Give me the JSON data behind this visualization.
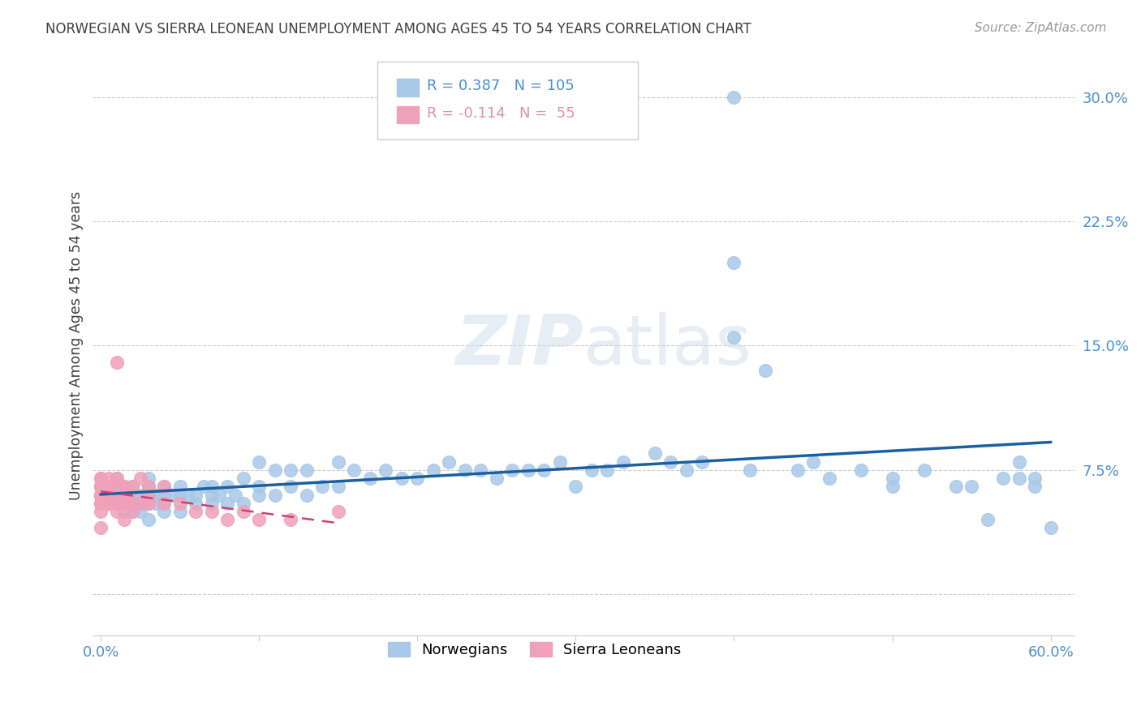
{
  "title": "NORWEGIAN VS SIERRA LEONEAN UNEMPLOYMENT AMONG AGES 45 TO 54 YEARS CORRELATION CHART",
  "source": "Source: ZipAtlas.com",
  "ylabel": "Unemployment Among Ages 45 to 54 years",
  "watermark": "ZIPatlas",
  "legend_norwegian": "Norwegians",
  "legend_sierra": "Sierra Leoneans",
  "r_norwegian": 0.387,
  "n_norwegian": 105,
  "r_sierra": -0.114,
  "n_sierra": 55,
  "xlim": [
    -0.005,
    0.615
  ],
  "ylim": [
    -0.025,
    0.325
  ],
  "yticks": [
    0.0,
    0.075,
    0.15,
    0.225,
    0.3
  ],
  "ytick_labels": [
    "",
    "7.5%",
    "15.0%",
    "22.5%",
    "30.0%"
  ],
  "xticks": [
    0.0,
    0.1,
    0.2,
    0.3,
    0.4,
    0.5,
    0.6
  ],
  "xtick_labels": [
    "0.0%",
    "",
    "",
    "",
    "",
    "",
    "60.0%"
  ],
  "norwegian_color": "#a8c8e8",
  "norwegian_line_color": "#1a5fa0",
  "sierra_color": "#f0a0b8",
  "sierra_line_color": "#d04070",
  "tick_label_color": "#4a90d0",
  "background_color": "#ffffff",
  "grid_color": "#cccccc",
  "title_color": "#404040",
  "norwegian_x": [
    0.005,
    0.008,
    0.01,
    0.01,
    0.01,
    0.01,
    0.012,
    0.012,
    0.015,
    0.015,
    0.015,
    0.018,
    0.02,
    0.02,
    0.02,
    0.02,
    0.022,
    0.022,
    0.025,
    0.025,
    0.025,
    0.028,
    0.03,
    0.03,
    0.03,
    0.03,
    0.03,
    0.035,
    0.035,
    0.04,
    0.04,
    0.04,
    0.04,
    0.045,
    0.05,
    0.05,
    0.05,
    0.055,
    0.06,
    0.06,
    0.065,
    0.07,
    0.07,
    0.07,
    0.075,
    0.08,
    0.08,
    0.085,
    0.09,
    0.09,
    0.1,
    0.1,
    0.1,
    0.11,
    0.11,
    0.12,
    0.12,
    0.13,
    0.13,
    0.14,
    0.15,
    0.15,
    0.16,
    0.17,
    0.18,
    0.19,
    0.2,
    0.21,
    0.22,
    0.23,
    0.24,
    0.25,
    0.26,
    0.27,
    0.28,
    0.29,
    0.3,
    0.31,
    0.32,
    0.33,
    0.35,
    0.36,
    0.37,
    0.38,
    0.4,
    0.41,
    0.42,
    0.44,
    0.45,
    0.46,
    0.48,
    0.5,
    0.5,
    0.52,
    0.54,
    0.55,
    0.56,
    0.57,
    0.58,
    0.58,
    0.59,
    0.59,
    0.6,
    0.4,
    0.4
  ],
  "norwegian_y": [
    0.055,
    0.06,
    0.055,
    0.06,
    0.065,
    0.07,
    0.055,
    0.065,
    0.05,
    0.06,
    0.065,
    0.06,
    0.05,
    0.055,
    0.06,
    0.065,
    0.055,
    0.06,
    0.05,
    0.055,
    0.06,
    0.055,
    0.045,
    0.055,
    0.06,
    0.065,
    0.07,
    0.055,
    0.06,
    0.05,
    0.055,
    0.06,
    0.065,
    0.06,
    0.05,
    0.06,
    0.065,
    0.06,
    0.055,
    0.06,
    0.065,
    0.055,
    0.06,
    0.065,
    0.06,
    0.055,
    0.065,
    0.06,
    0.055,
    0.07,
    0.06,
    0.065,
    0.08,
    0.06,
    0.075,
    0.065,
    0.075,
    0.06,
    0.075,
    0.065,
    0.065,
    0.08,
    0.075,
    0.07,
    0.075,
    0.07,
    0.07,
    0.075,
    0.08,
    0.075,
    0.075,
    0.07,
    0.075,
    0.075,
    0.075,
    0.08,
    0.065,
    0.075,
    0.075,
    0.08,
    0.085,
    0.08,
    0.075,
    0.08,
    0.2,
    0.075,
    0.135,
    0.075,
    0.08,
    0.07,
    0.075,
    0.07,
    0.065,
    0.075,
    0.065,
    0.065,
    0.045,
    0.07,
    0.07,
    0.08,
    0.07,
    0.065,
    0.04,
    0.155,
    0.3
  ],
  "sierra_x": [
    0.0,
    0.0,
    0.0,
    0.0,
    0.0,
    0.0,
    0.0,
    0.0,
    0.0,
    0.0,
    0.0,
    0.0,
    0.0,
    0.0,
    0.0,
    0.005,
    0.005,
    0.005,
    0.005,
    0.005,
    0.008,
    0.008,
    0.01,
    0.01,
    0.01,
    0.01,
    0.01,
    0.01,
    0.01,
    0.012,
    0.012,
    0.015,
    0.015,
    0.015,
    0.015,
    0.015,
    0.018,
    0.02,
    0.02,
    0.02,
    0.025,
    0.025,
    0.03,
    0.03,
    0.03,
    0.04,
    0.04,
    0.05,
    0.06,
    0.07,
    0.08,
    0.09,
    0.1,
    0.12,
    0.15
  ],
  "sierra_y": [
    0.05,
    0.055,
    0.055,
    0.06,
    0.06,
    0.06,
    0.065,
    0.065,
    0.07,
    0.04,
    0.055,
    0.06,
    0.06,
    0.065,
    0.07,
    0.055,
    0.06,
    0.06,
    0.065,
    0.07,
    0.055,
    0.065,
    0.05,
    0.055,
    0.06,
    0.06,
    0.065,
    0.07,
    0.14,
    0.055,
    0.06,
    0.045,
    0.055,
    0.055,
    0.06,
    0.065,
    0.06,
    0.05,
    0.055,
    0.065,
    0.055,
    0.07,
    0.055,
    0.06,
    0.065,
    0.055,
    0.065,
    0.055,
    0.05,
    0.05,
    0.045,
    0.05,
    0.045,
    0.045,
    0.05
  ]
}
